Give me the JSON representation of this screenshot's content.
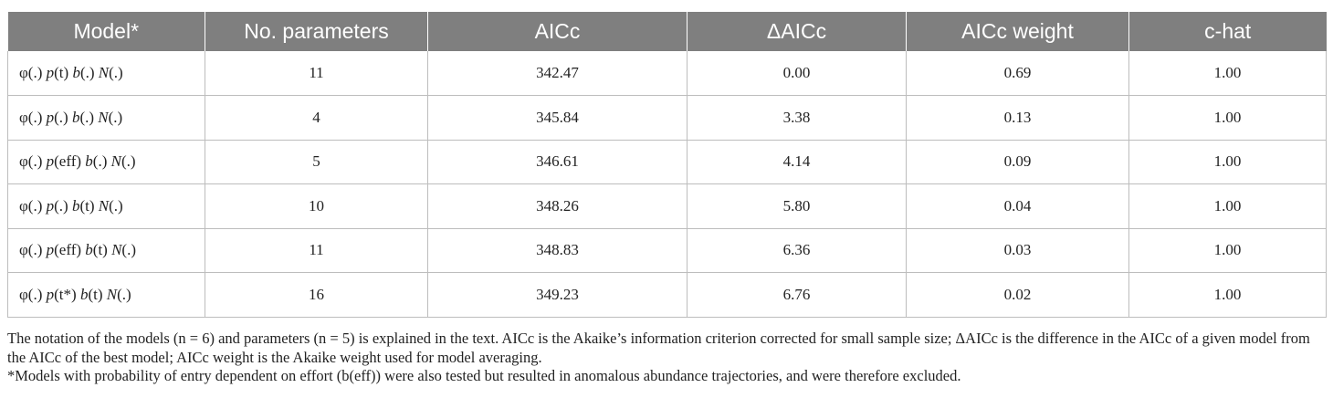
{
  "table": {
    "headers": [
      "Model*",
      "No. parameters",
      "AICc",
      "ΔAICc",
      "AICc weight",
      "c-hat"
    ],
    "rows": [
      {
        "model": {
          "phi": "φ(.) ",
          "p": "p",
          "p_arg": "(t) ",
          "b": "b",
          "b_arg": "(.) ",
          "N": "N",
          "N_arg": "(.)"
        },
        "params": "11",
        "aicc": "342.47",
        "daicc": "0.00",
        "weight": "0.69",
        "chat": "1.00"
      },
      {
        "model": {
          "phi": "φ(.) ",
          "p": "p",
          "p_arg": "(.) ",
          "b": "b",
          "b_arg": "(.) ",
          "N": "N",
          "N_arg": "(.)"
        },
        "params": "4",
        "aicc": "345.84",
        "daicc": "3.38",
        "weight": "0.13",
        "chat": "1.00"
      },
      {
        "model": {
          "phi": "φ(.) ",
          "p": "p",
          "p_arg": "(eff) ",
          "b": "b",
          "b_arg": "(.) ",
          "N": "N",
          "N_arg": "(.)"
        },
        "params": "5",
        "aicc": "346.61",
        "daicc": "4.14",
        "weight": "0.09",
        "chat": "1.00"
      },
      {
        "model": {
          "phi": "φ(.) ",
          "p": "p",
          "p_arg": "(.) ",
          "b": "b",
          "b_arg": "(t) ",
          "N": "N",
          "N_arg": "(.)"
        },
        "params": "10",
        "aicc": "348.26",
        "daicc": "5.80",
        "weight": "0.04",
        "chat": "1.00"
      },
      {
        "model": {
          "phi": "φ(.) ",
          "p": "p",
          "p_arg": "(eff) ",
          "b": "b",
          "b_arg": "(t) ",
          "N": "N",
          "N_arg": "(.)"
        },
        "params": "11",
        "aicc": "348.83",
        "daicc": "6.36",
        "weight": "0.03",
        "chat": "1.00"
      },
      {
        "model": {
          "phi": "φ(.) ",
          "p": "p",
          "p_arg": "(t*) ",
          "b": "b",
          "b_arg": "(t) ",
          "N": "N",
          "N_arg": "(.)"
        },
        "params": "16",
        "aicc": "349.23",
        "daicc": "6.76",
        "weight": "0.02",
        "chat": "1.00"
      }
    ]
  },
  "footnotes": {
    "note": "The notation of the models (n = 6) and parameters (n = 5) is explained in the text. AICc is the Akaike’s information criterion corrected for small sample size; ΔAICc is the difference in the AICc of a given model from the AICc of the best model; AICc weight is the Akaike weight used for model averaging.",
    "asterisk": "*Models with probability of entry dependent on effort (b(eff)) were also tested but resulted in anomalous abundance trajectories, and were therefore excluded."
  }
}
